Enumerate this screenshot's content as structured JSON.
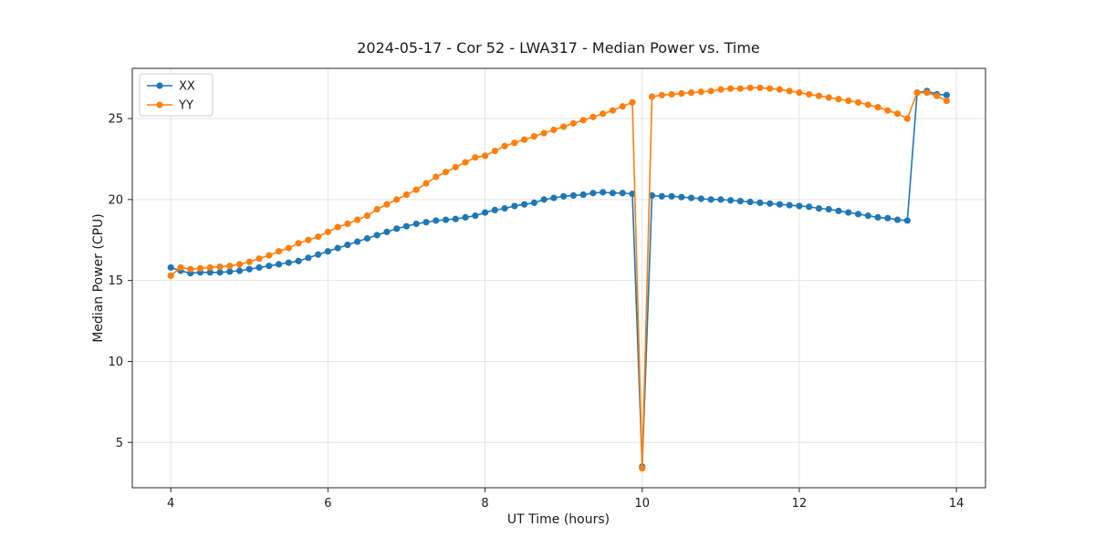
{
  "chart_data": {
    "type": "line",
    "title": "2024-05-17 - Cor 52 - LWA317 - Median Power vs. Time",
    "xlabel": "UT Time (hours)",
    "ylabel": "Median Power (CPU)",
    "xlim": [
      3.51,
      14.37
    ],
    "ylim": [
      2.2,
      28.1
    ],
    "xticks": [
      4,
      6,
      8,
      10,
      12,
      14
    ],
    "yticks": [
      5,
      10,
      15,
      20,
      25
    ],
    "grid": true,
    "legend_position": "upper left",
    "x": [
      4.0,
      4.125,
      4.25,
      4.375,
      4.5,
      4.625,
      4.75,
      4.875,
      5.0,
      5.125,
      5.25,
      5.375,
      5.5,
      5.625,
      5.75,
      5.875,
      6.0,
      6.125,
      6.25,
      6.375,
      6.5,
      6.625,
      6.75,
      6.875,
      7.0,
      7.125,
      7.25,
      7.375,
      7.5,
      7.625,
      7.75,
      7.875,
      8.0,
      8.125,
      8.25,
      8.375,
      8.5,
      8.625,
      8.75,
      8.875,
      9.0,
      9.125,
      9.25,
      9.375,
      9.5,
      9.625,
      9.75,
      9.875,
      10.0,
      10.125,
      10.25,
      10.375,
      10.5,
      10.625,
      10.75,
      10.875,
      11.0,
      11.125,
      11.25,
      11.375,
      11.5,
      11.625,
      11.75,
      11.875,
      12.0,
      12.125,
      12.25,
      12.375,
      12.5,
      12.625,
      12.75,
      12.875,
      13.0,
      13.125,
      13.25,
      13.375,
      13.5,
      13.625,
      13.75,
      13.875
    ],
    "series": [
      {
        "name": "XX",
        "color": "#1f77b4",
        "values": [
          15.8,
          15.6,
          15.45,
          15.5,
          15.5,
          15.5,
          15.55,
          15.6,
          15.7,
          15.8,
          15.9,
          16.0,
          16.1,
          16.2,
          16.4,
          16.6,
          16.8,
          17.0,
          17.2,
          17.4,
          17.6,
          17.8,
          18.0,
          18.2,
          18.35,
          18.5,
          18.6,
          18.7,
          18.75,
          18.8,
          18.9,
          19.0,
          19.2,
          19.35,
          19.45,
          19.6,
          19.7,
          19.8,
          20.0,
          20.1,
          20.2,
          20.25,
          20.3,
          20.4,
          20.45,
          20.4,
          20.4,
          20.35,
          3.5,
          20.25,
          20.2,
          20.2,
          20.15,
          20.1,
          20.05,
          20.0,
          20.0,
          19.95,
          19.9,
          19.85,
          19.8,
          19.75,
          19.7,
          19.65,
          19.6,
          19.55,
          19.45,
          19.4,
          19.3,
          19.2,
          19.1,
          19.0,
          18.9,
          18.85,
          18.75,
          18.7,
          26.6,
          26.7,
          26.5,
          26.45
        ]
      },
      {
        "name": "YY",
        "color": "#ff7f0e",
        "values": [
          15.3,
          15.8,
          15.7,
          15.75,
          15.8,
          15.85,
          15.9,
          16.0,
          16.15,
          16.35,
          16.55,
          16.8,
          17.0,
          17.3,
          17.5,
          17.7,
          18.0,
          18.3,
          18.5,
          18.75,
          19.0,
          19.4,
          19.7,
          20.0,
          20.3,
          20.6,
          21.0,
          21.4,
          21.7,
          22.0,
          22.3,
          22.6,
          22.7,
          23.0,
          23.3,
          23.5,
          23.7,
          23.9,
          24.1,
          24.3,
          24.5,
          24.7,
          24.9,
          25.1,
          25.3,
          25.5,
          25.75,
          26.0,
          3.4,
          26.35,
          26.45,
          26.5,
          26.55,
          26.6,
          26.65,
          26.7,
          26.8,
          26.85,
          26.85,
          26.9,
          26.9,
          26.85,
          26.8,
          26.7,
          26.6,
          26.5,
          26.4,
          26.3,
          26.2,
          26.1,
          26.0,
          25.85,
          25.7,
          25.5,
          25.3,
          25.0,
          26.6,
          26.6,
          26.4,
          26.1
        ]
      }
    ]
  }
}
